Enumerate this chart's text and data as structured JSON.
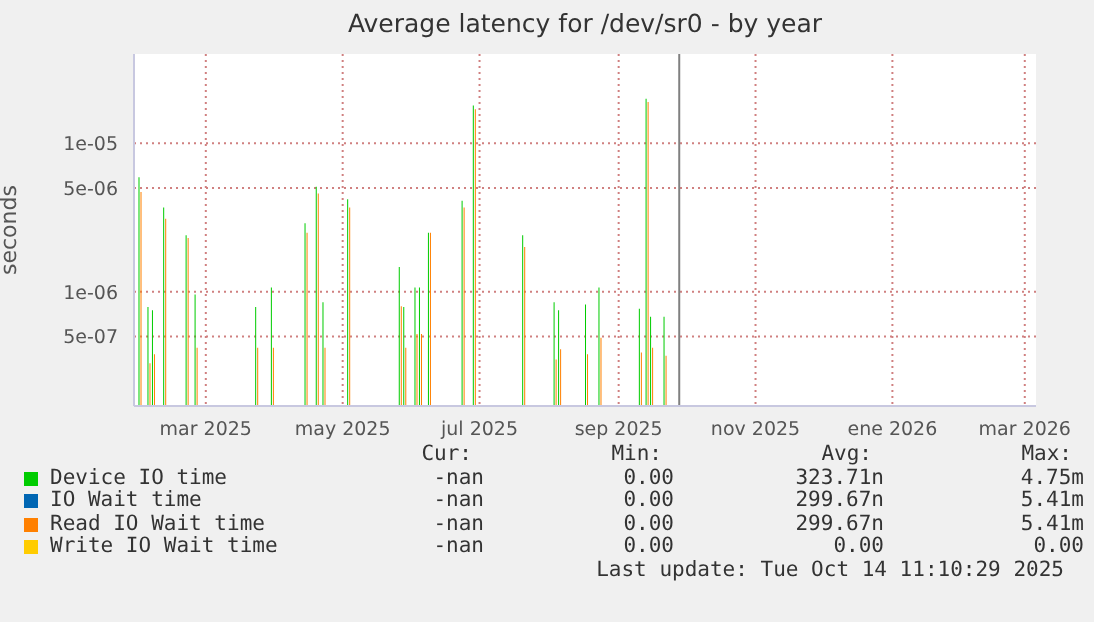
{
  "chart_data": {
    "type": "bar",
    "title": "Average latency for /dev/sr0 - by year",
    "ylabel": "seconds",
    "log": true,
    "grid": true,
    "legend": "bottom",
    "x": [
      "2025-01-31",
      "2025-02-04",
      "2025-02-06",
      "2025-02-11",
      "2025-02-21",
      "2025-02-25",
      "2025-03-24",
      "2025-03-31",
      "2025-04-15",
      "2025-04-20",
      "2025-04-23",
      "2025-05-04",
      "2025-05-27",
      "2025-05-29",
      "2025-06-03",
      "2025-06-05",
      "2025-06-09",
      "2025-06-24",
      "2025-06-29",
      "2025-07-21",
      "2025-08-04",
      "2025-08-06",
      "2025-08-18",
      "2025-08-24",
      "2025-09-11",
      "2025-09-14",
      "2025-09-16",
      "2025-09-22"
    ],
    "xlim": [
      "2025-01-28",
      "2026-03-06"
    ],
    "xticks": [
      {
        "value": "2025-03-01",
        "label": "mar 2025"
      },
      {
        "value": "2025-05-01",
        "label": "may 2025"
      },
      {
        "value": "2025-07-01",
        "label": "jul 2025"
      },
      {
        "value": "2025-09-01",
        "label": "sep 2025"
      },
      {
        "value": "2025-11-01",
        "label": "nov 2025"
      },
      {
        "value": "2026-01-01",
        "label": "ene 2026"
      },
      {
        "value": "2026-03-01",
        "label": "mar 2026"
      }
    ],
    "ylim": [
      1.7e-07,
      4e-05
    ],
    "yticks": [
      {
        "value": 5e-07,
        "label": "5e-07"
      },
      {
        "value": 1e-06,
        "label": "1e-06"
      },
      {
        "value": 5e-06,
        "label": "5e-06"
      },
      {
        "value": 1e-05,
        "label": "1e-05"
      }
    ],
    "series": [
      {
        "name": "Device IO time",
        "color": "#00cc00",
        "values": [
          5.9e-06,
          7.9e-07,
          7.5e-07,
          3.7e-06,
          2.4e-06,
          9.6e-07,
          7.9e-07,
          1.07e-06,
          2.9e-06,
          5.1e-06,
          8.5e-07,
          4.2e-06,
          1.47e-06,
          7.9e-07,
          1.07e-06,
          1.07e-06,
          2.5e-06,
          4.1e-06,
          1.8e-05,
          2.4e-06,
          8.5e-07,
          7.5e-07,
          8.2e-07,
          1.07e-06,
          7.7e-07,
          2e-05,
          6.8e-07,
          6.8e-07
        ]
      },
      {
        "name": "IO Wait time",
        "color": "#0066b3",
        "values": [
          null,
          null,
          null,
          null,
          null,
          null,
          null,
          null,
          null,
          null,
          null,
          null,
          null,
          null,
          null,
          null,
          null,
          null,
          null,
          null,
          null,
          null,
          null,
          null,
          null,
          null,
          null,
          null
        ]
      },
      {
        "name": "Read IO Wait time",
        "color": "#ff8000",
        "values": [
          4.7e-06,
          3.3e-07,
          3.8e-07,
          3.1e-06,
          2.3e-06,
          4.2e-07,
          4.2e-07,
          4.2e-07,
          2.5e-06,
          4.6e-06,
          4.2e-07,
          3.7e-06,
          8e-07,
          4.2e-07,
          5.2e-07,
          5.2e-07,
          2.5e-06,
          3.7e-06,
          1.7e-05,
          2e-06,
          3.5e-07,
          4.1e-07,
          3.8e-07,
          4.9e-07,
          3.9e-07,
          1.9e-05,
          4.2e-07,
          3.7e-07
        ]
      },
      {
        "name": "Write IO Wait time",
        "color": "#ffcc00",
        "values": [
          null,
          null,
          null,
          null,
          null,
          null,
          null,
          null,
          null,
          null,
          null,
          null,
          null,
          null,
          null,
          null,
          null,
          null,
          null,
          null,
          null,
          null,
          null,
          null,
          null,
          null,
          null,
          null
        ]
      }
    ],
    "ref_lines": [
      {
        "axis": "x",
        "value": "2025-09-28",
        "color": "#808080"
      }
    ],
    "annotations": [
      "Cur:",
      "Min:",
      "Avg:",
      "Max:",
      "-nan",
      "0.00",
      "323.71n",
      "4.75m",
      "-nan",
      "0.00",
      "299.67n",
      "5.41m",
      "-nan",
      "0.00",
      "299.67n",
      "5.41m",
      "-nan",
      "0.00",
      "0.00",
      "0.00",
      "Last update: Tue Oct 14 11:10:29 2025"
    ]
  }
}
